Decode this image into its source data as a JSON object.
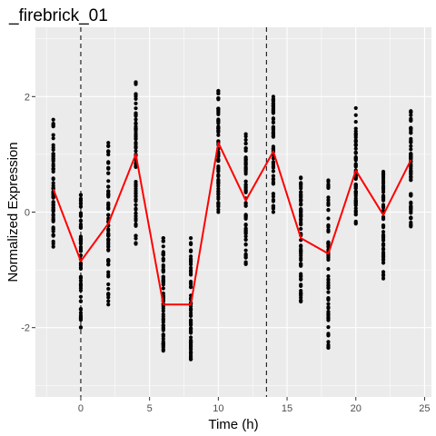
{
  "chart_data": {
    "type": "scatter",
    "title": "_firebrick_01",
    "xlabel": "Time (h)",
    "ylabel": "Normalized Expression",
    "xlim": [
      -3.3,
      25.5
    ],
    "ylim": [
      -3.2,
      3.2
    ],
    "x_ticks": [
      0,
      5,
      10,
      15,
      20,
      25
    ],
    "x_tick_labels": [
      "0",
      "5",
      "10",
      "15",
      "20",
      "25"
    ],
    "y_ticks": [
      -2,
      0,
      2
    ],
    "y_tick_labels": [
      "-2",
      "0",
      "2"
    ],
    "grid": true,
    "legend": "none",
    "vertical_dashed_lines": [
      0,
      13.5
    ],
    "point_columns": [
      {
        "x": -2,
        "min": -0.6,
        "max": 1.6,
        "core": [
          -0.3,
          1.2
        ]
      },
      {
        "x": 0,
        "min": -2.0,
        "max": 0.3,
        "core": [
          -1.7,
          0.1
        ]
      },
      {
        "x": 2,
        "min": -1.6,
        "max": 1.2,
        "core": [
          -1.1,
          0.9
        ]
      },
      {
        "x": 4,
        "min": -0.55,
        "max": 2.25,
        "core": [
          -0.2,
          1.9
        ]
      },
      {
        "x": 6,
        "min": -2.4,
        "max": -0.45,
        "core": [
          -2.2,
          -0.7
        ]
      },
      {
        "x": 8,
        "min": -2.55,
        "max": -0.45,
        "core": [
          -2.4,
          -0.7
        ]
      },
      {
        "x": 10,
        "min": 0.0,
        "max": 2.1,
        "core": [
          0.3,
          1.85
        ]
      },
      {
        "x": 12,
        "min": -0.9,
        "max": 1.35,
        "core": [
          -0.6,
          1.1
        ]
      },
      {
        "x": 14,
        "min": 0.0,
        "max": 2.0,
        "core": [
          0.3,
          1.9
        ]
      },
      {
        "x": 16,
        "min": -1.55,
        "max": 0.6,
        "core": [
          -1.3,
          0.4
        ]
      },
      {
        "x": 18,
        "min": -2.35,
        "max": 0.55,
        "core": [
          -1.9,
          0.4
        ]
      },
      {
        "x": 20,
        "min": -0.2,
        "max": 1.8,
        "core": [
          0.1,
          1.35
        ]
      },
      {
        "x": 22,
        "min": -1.15,
        "max": 0.7,
        "core": [
          -0.8,
          0.55
        ]
      },
      {
        "x": 24,
        "min": -0.25,
        "max": 1.75,
        "core": [
          0.0,
          1.5
        ]
      }
    ],
    "series": [
      {
        "color": "#ff0000",
        "x": [
          -2,
          0,
          2,
          4,
          6,
          8,
          10,
          12,
          14,
          16,
          18,
          20,
          22,
          24
        ],
        "y": [
          0.4,
          -0.85,
          -0.2,
          1.0,
          -1.6,
          -1.6,
          1.2,
          0.2,
          1.05,
          -0.45,
          -0.72,
          0.72,
          -0.05,
          0.9
        ]
      }
    ]
  }
}
